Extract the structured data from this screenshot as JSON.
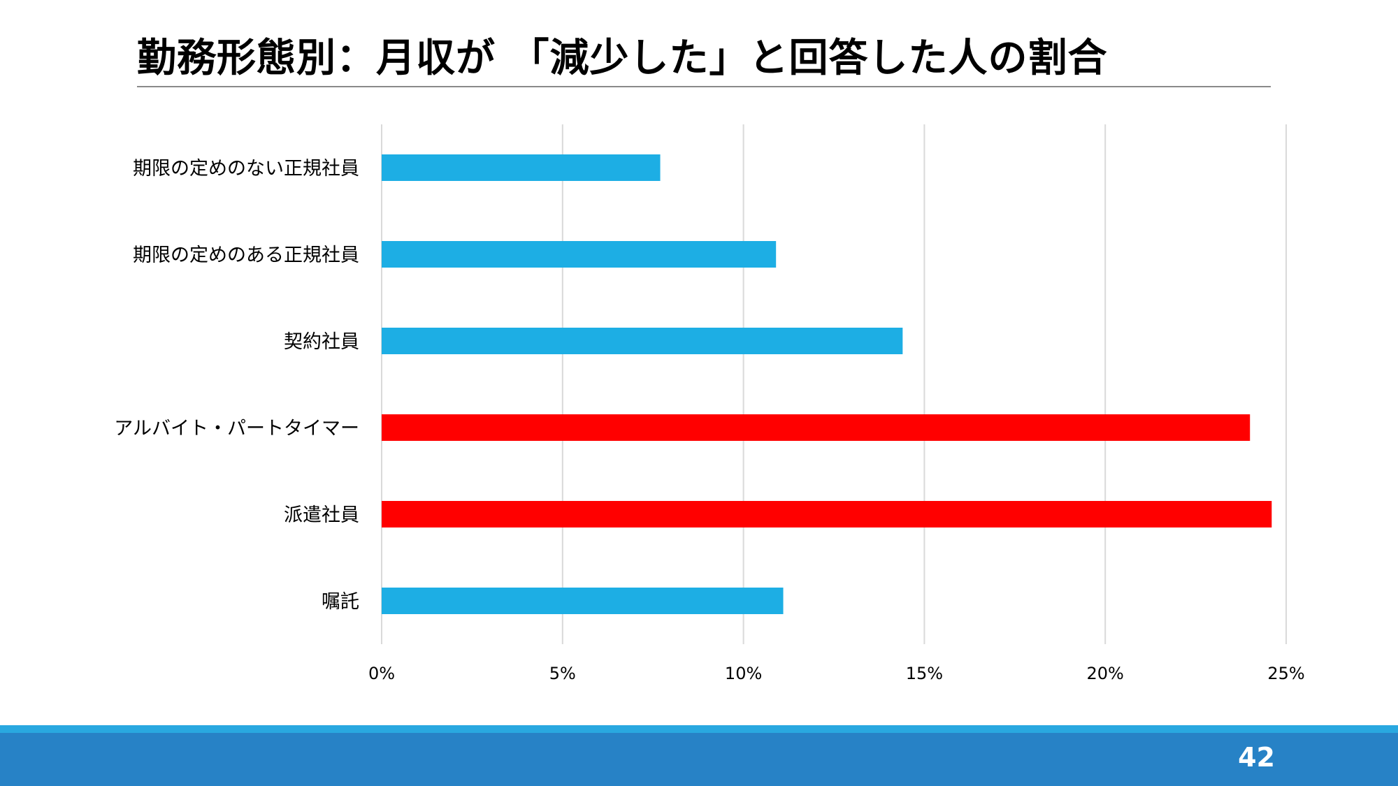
{
  "slide": {
    "title": "勤務形態別：月収が 「減少した」と回答した人の割合",
    "page_number": "42"
  },
  "colors": {
    "bar_default": "#1daee4",
    "bar_highlight": "#ff0000",
    "grid": "#d9d9d9",
    "footer_stripe": "#29a8e0",
    "footer_bar": "#2782c6"
  },
  "chart_data": {
    "type": "bar",
    "orientation": "horizontal",
    "title": "",
    "xlabel": "",
    "ylabel": "",
    "xlim": [
      0,
      25
    ],
    "xticks": [
      0,
      5,
      10,
      15,
      20,
      25
    ],
    "xtick_labels": [
      "0%",
      "5%",
      "10%",
      "15%",
      "20%",
      "25%"
    ],
    "grid": true,
    "legend": "none",
    "categories": [
      "期限の定めのない正規社員",
      "期限の定めのある正規社員",
      "契約社員",
      "アルバイト・パートタイマー",
      "派遣社員",
      "嘱託"
    ],
    "values": [
      7.7,
      10.9,
      14.4,
      24.0,
      24.6,
      11.1
    ],
    "highlighted": [
      false,
      false,
      false,
      true,
      true,
      false
    ]
  }
}
